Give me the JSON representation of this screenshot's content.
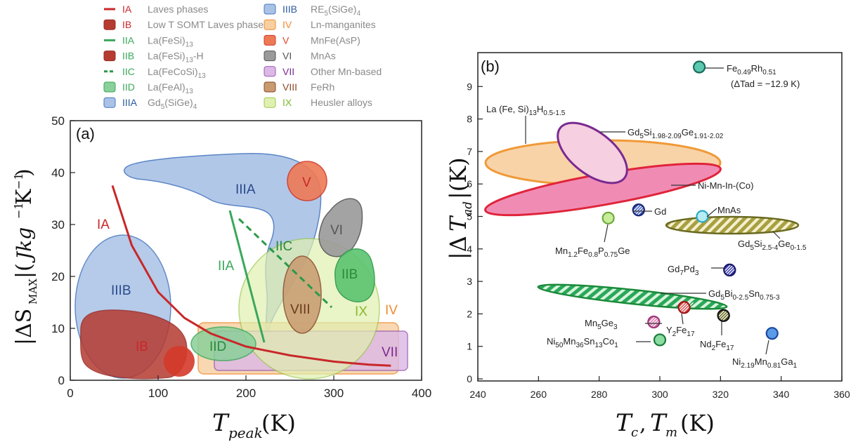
{
  "legend": [
    {
      "code": "IA",
      "text": "Laves phases",
      "color": "#c8282a",
      "symbol": "line"
    },
    {
      "code": "IB",
      "text": "Low T SOMT Laves phases",
      "color": "#c8282a",
      "symbol": "box"
    },
    {
      "code": "IIA",
      "text": "La(FeSi)13",
      "color": "#3aa85a",
      "symbol": "line"
    },
    {
      "code": "IIB",
      "text": "La(FeSi)13-H",
      "color": "#3aa85a",
      "symbol": "box"
    },
    {
      "code": "IIC",
      "text": "La(FeCoSi)13",
      "color": "#3aa85a",
      "symbol": "dash"
    },
    {
      "code": "IID",
      "text": "La(FeAl)13",
      "color": "#3aa85a",
      "symbol": "boxlight"
    },
    {
      "code": "IIIA",
      "text": "Gd5(SiGe)4",
      "color": "#2a5a9a",
      "symbol": "boxblue"
    },
    {
      "code": "IIIB",
      "text": "RE5(SiGe)4",
      "color": "#2a5a9a",
      "symbol": "boxblue"
    },
    {
      "code": "IV",
      "text": "Ln-manganites",
      "color": "#f08a30",
      "symbol": "boxorange"
    },
    {
      "code": "V",
      "text": "MnFe(AsP)",
      "color": "#e0452a",
      "symbol": "boxred"
    },
    {
      "code": "VI",
      "text": "MnAs",
      "color": "#555555",
      "symbol": "boxgray"
    },
    {
      "code": "VII",
      "text": "Other Mn-based",
      "color": "#7a2a90",
      "symbol": "boxpurple"
    },
    {
      "code": "VIII",
      "text": "FeRh",
      "color": "#8a4a2a",
      "symbol": "boxbrown"
    },
    {
      "code": "IX",
      "text": "Heusler alloys",
      "color": "#7ab82a",
      "symbol": "boxlime"
    }
  ],
  "chart_data": [
    {
      "panel_label": "(a)",
      "type": "area",
      "xlabel": "T_peak (K)",
      "ylabel": "|ΔS_MAX| (Jkg⁻¹K⁻¹)",
      "xlim": [
        0,
        400
      ],
      "ylim": [
        0,
        50
      ],
      "xticks": [
        "0",
        "100",
        "200",
        "300",
        "400"
      ],
      "yticks": [
        "0",
        "10",
        "20",
        "30",
        "40",
        "50"
      ],
      "region_labels": [
        "IA",
        "IB",
        "IIA",
        "IIB",
        "IIC",
        "IID",
        "IIIA",
        "IIIB",
        "IV",
        "V",
        "VI",
        "VII",
        "VIII",
        "IX"
      ],
      "laves_curve": {
        "x": [
          48,
          70,
          100,
          130,
          160,
          200,
          250,
          300,
          340,
          365
        ],
        "y": [
          37.5,
          26,
          17,
          12,
          9,
          6.5,
          4.8,
          3.6,
          3.0,
          2.8
        ]
      }
    },
    {
      "panel_label": "(b)",
      "type": "scatter",
      "xlabel": "T_c, T_m (K)",
      "ylabel": "|ΔT_ad| (K)",
      "xlim": [
        240,
        360
      ],
      "ylim": [
        0,
        10
      ],
      "xticks": [
        "240",
        "260",
        "280",
        "300",
        "320",
        "340",
        "360"
      ],
      "yticks": [
        "0",
        "1",
        "2",
        "3",
        "4",
        "5",
        "6",
        "7",
        "8",
        "9"
      ],
      "points": [
        {
          "label": "Fe0.49Rh0.51",
          "x": 313,
          "y": 9.6
        },
        {
          "label": "Gd",
          "x": 293,
          "y": 5.2
        },
        {
          "label": "MnAs",
          "x": 314,
          "y": 5.0
        },
        {
          "label": "Mn1.2Fe0.8P0.75Ge",
          "x": 283,
          "y": 4.95
        },
        {
          "label": "Gd7Pd3",
          "x": 323,
          "y": 3.35
        },
        {
          "label": "Y2Fe17",
          "x": 308,
          "y": 2.2
        },
        {
          "label": "Nd2Fe17",
          "x": 321,
          "y": 1.95
        },
        {
          "label": "Mn5Ge3",
          "x": 298,
          "y": 1.75
        },
        {
          "label": "Ni50Mn36Sn13Co1",
          "x": 300,
          "y": 1.2
        },
        {
          "label": "Ni2.19Mn0.81Ga1",
          "x": 337,
          "y": 1.4
        }
      ],
      "annotations": {
        "ferh_note": "(ΔTad = −12.9 K)",
        "la": "La (Fe, Si)13H0.5-1.5",
        "gdsige": "Gd5Si1.98-2.09Ge1.91-2.02",
        "nimnin": "Ni-Mn-In-(Co)",
        "gdsi": "Gd5Si2.5-4Ge0-1.5",
        "gdbi": "Gd5Bi0-2.5Sn0.75-3"
      }
    }
  ]
}
